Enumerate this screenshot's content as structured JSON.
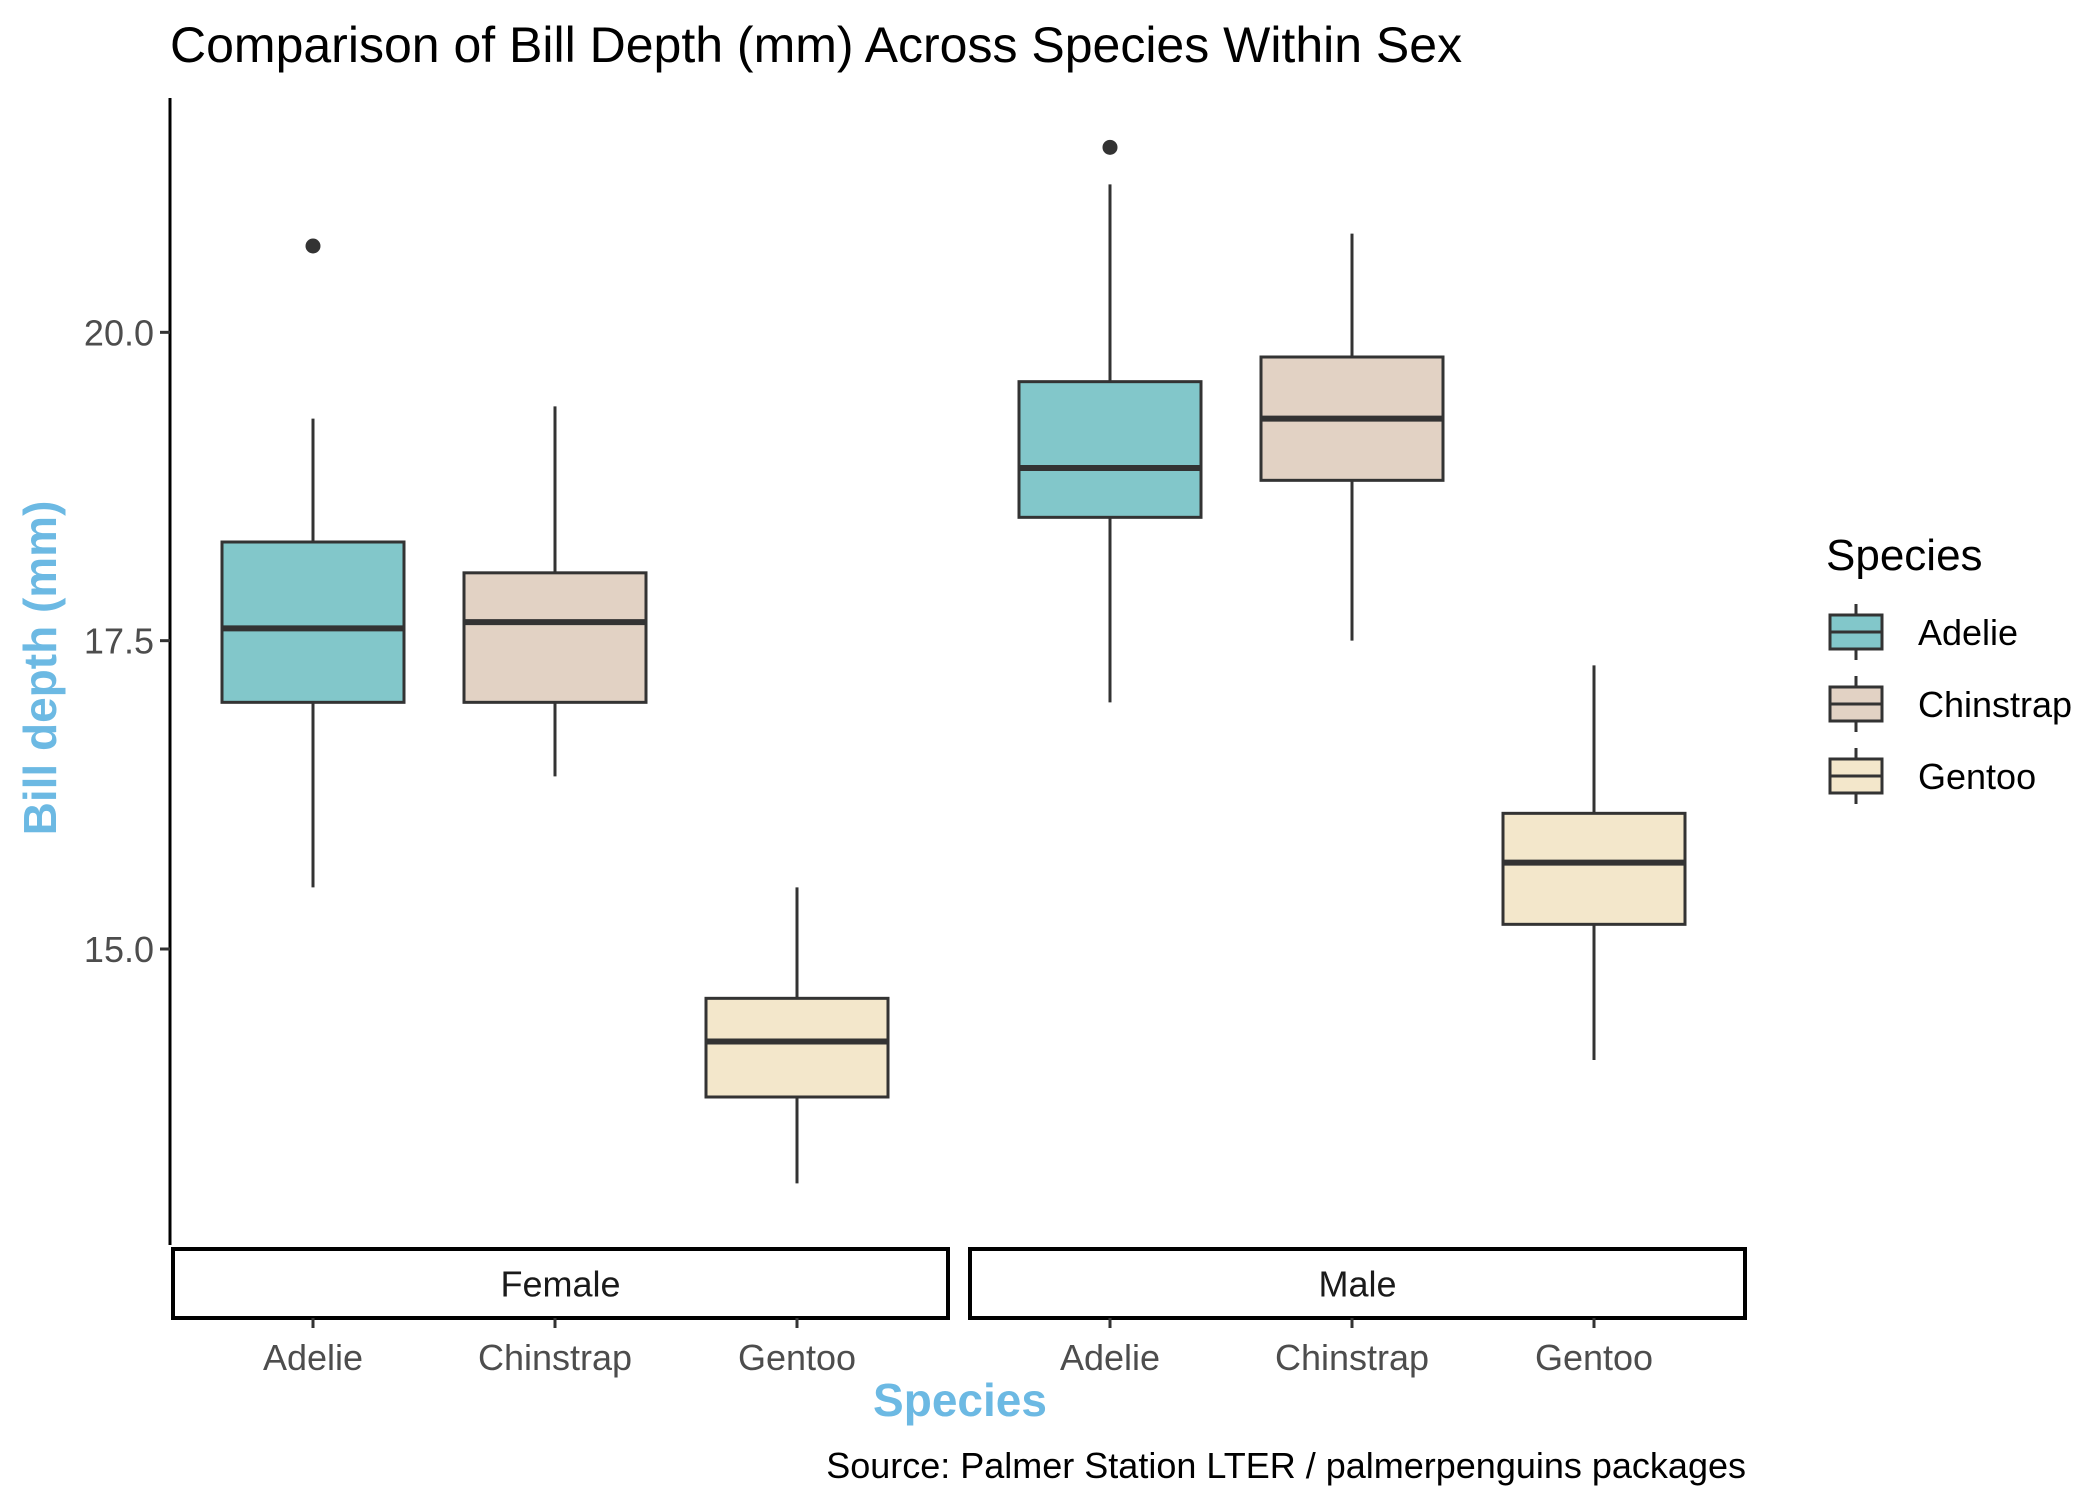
{
  "chart_data": {
    "type": "box",
    "title": "Comparison of Bill Depth (mm) Across Species Within Sex",
    "xlabel": "Species",
    "ylabel": "Bill depth (mm)",
    "caption": "Source: Palmer Station LTER / palmerpenguins packages",
    "ylim": [
      12.6,
      21.9
    ],
    "yticks": [
      {
        "value": 15.0,
        "label": "15.0"
      },
      {
        "value": 17.5,
        "label": "17.5"
      },
      {
        "value": 20.0,
        "label": "20.0"
      }
    ],
    "grid": false,
    "legend": {
      "title": "Species",
      "position": "right",
      "items": [
        "Adelie",
        "Chinstrap",
        "Gentoo"
      ]
    },
    "colors": {
      "Adelie": "#82c7ca",
      "Chinstrap": "#e2d2c4",
      "Gentoo": "#f3e7cb",
      "outline": "#333333",
      "axis_title": "#6cb9e3"
    },
    "facets": [
      {
        "label": "Female",
        "boxes": [
          {
            "category": "Adelie",
            "whisker_low": 15.5,
            "q1": 17.0,
            "median": 17.6,
            "q3": 18.3,
            "whisker_high": 19.3,
            "outliers": [
              20.7
            ]
          },
          {
            "category": "Chinstrap",
            "whisker_low": 16.4,
            "q1": 17.0,
            "median": 17.65,
            "q3": 18.05,
            "whisker_high": 19.4,
            "outliers": []
          },
          {
            "category": "Gentoo",
            "whisker_low": 13.1,
            "q1": 13.8,
            "median": 14.25,
            "q3": 14.6,
            "whisker_high": 15.5,
            "outliers": []
          }
        ]
      },
      {
        "label": "Male",
        "boxes": [
          {
            "category": "Adelie",
            "whisker_low": 17.0,
            "q1": 18.5,
            "median": 18.9,
            "q3": 19.6,
            "whisker_high": 21.2,
            "outliers": [
              21.5
            ]
          },
          {
            "category": "Chinstrap",
            "whisker_low": 17.5,
            "q1": 18.8,
            "median": 19.3,
            "q3": 19.8,
            "whisker_high": 20.8,
            "outliers": []
          },
          {
            "category": "Gentoo",
            "whisker_low": 14.1,
            "q1": 15.2,
            "median": 15.7,
            "q3": 16.1,
            "whisker_high": 17.3,
            "outliers": []
          }
        ]
      }
    ]
  }
}
